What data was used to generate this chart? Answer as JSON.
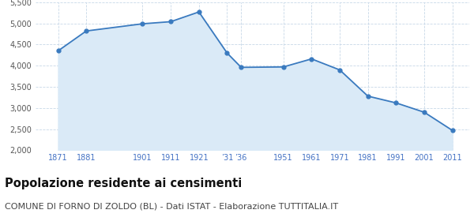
{
  "years": [
    1871,
    1881,
    1901,
    1911,
    1921,
    1931,
    1936,
    1951,
    1961,
    1971,
    1981,
    1991,
    2001,
    2011
  ],
  "population": [
    4350,
    4820,
    4990,
    5040,
    5270,
    4300,
    3960,
    3970,
    4160,
    3900,
    3280,
    3120,
    2900,
    2470
  ],
  "line_color": "#3a7abf",
  "fill_color": "#daeaf7",
  "marker_color": "#3a7abf",
  "background_color": "#ffffff",
  "grid_color": "#c8d8e8",
  "ylim": [
    2000,
    5500
  ],
  "yticks": [
    2000,
    2500,
    3000,
    3500,
    4000,
    4500,
    5000,
    5500
  ],
  "xlim_min": 1863,
  "xlim_max": 2017,
  "title": "Popolazione residente ai censimenti",
  "subtitle": "COMUNE DI FORNO DI ZOLDO (BL) - Dati ISTAT - Elaborazione TUTTITALIA.IT",
  "title_fontsize": 10.5,
  "subtitle_fontsize": 8,
  "axis_label_color": "#4472c4",
  "ytick_color": "#555555",
  "axis_tick_fontsize": 7,
  "x_tick_positions": [
    1871,
    1881,
    1901,
    1911,
    1921,
    1931,
    1936,
    1951,
    1961,
    1971,
    1981,
    1991,
    2001,
    2011
  ],
  "x_tick_labels": [
    "1871",
    "1881",
    "1901",
    "1911",
    "1921",
    "’31",
    "’36",
    "1951",
    "1961",
    "1971",
    "1981",
    "1991",
    "2001",
    "2011"
  ]
}
